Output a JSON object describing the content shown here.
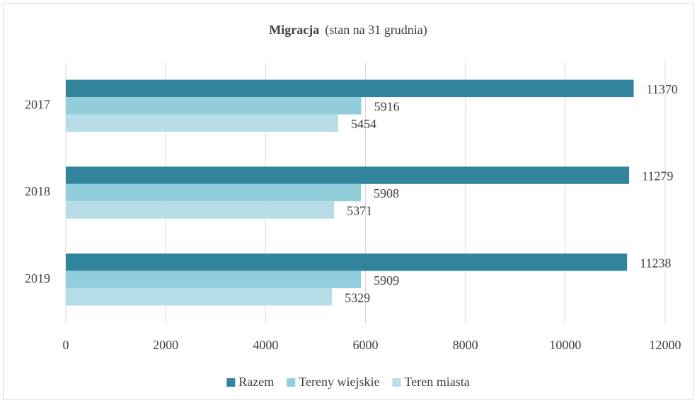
{
  "chart_data": {
    "type": "hbar",
    "title": "Migracja",
    "subtitle": "(stan na 31 grudnia)",
    "categories": [
      "2017",
      "2018",
      "2019"
    ],
    "series": [
      {
        "name": "Razem",
        "color": "#31849b",
        "values": [
          11370,
          11279,
          11238
        ]
      },
      {
        "name": "Tereny wiejskie",
        "color": "#92cddc",
        "values": [
          5916,
          5908,
          5909
        ]
      },
      {
        "name": "Teren miasta",
        "color": "#b7dee8",
        "values": [
          5454,
          5371,
          5329
        ]
      }
    ],
    "xlim": [
      0,
      12000
    ],
    "xticks": [
      0,
      2000,
      4000,
      6000,
      8000,
      10000,
      12000
    ],
    "grid": true,
    "legend": "bottom"
  }
}
